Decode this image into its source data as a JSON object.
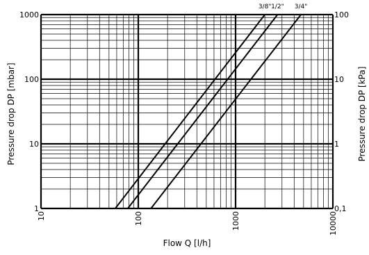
{
  "chart_data": {
    "type": "line",
    "title": "",
    "xlabel": "Flow Q [l/h]",
    "ylabel": "Pressure drop DP [mbar]",
    "ylabel_right": "Pressure drop DP [kPa]",
    "x_scale": "log",
    "y_scale": "log",
    "xlim": [
      10,
      10000
    ],
    "ylim": [
      1,
      1000
    ],
    "grid": true,
    "x_ticks": [
      "10",
      "100",
      "1000",
      "10000"
    ],
    "y_ticks_left": [
      "1",
      "10",
      "100",
      "1000"
    ],
    "y_ticks_right": [
      "0,1",
      "1",
      "10",
      "100"
    ],
    "series": [
      {
        "name": "3/8\"",
        "x": [
          58,
          2000
        ],
        "y": [
          1,
          1000
        ]
      },
      {
        "name": "1/2\"",
        "x": [
          78,
          2700
        ],
        "y": [
          1,
          1000
        ]
      },
      {
        "name": "3/4\"",
        "x": [
          135,
          4700
        ],
        "y": [
          1,
          1000
        ]
      }
    ]
  }
}
